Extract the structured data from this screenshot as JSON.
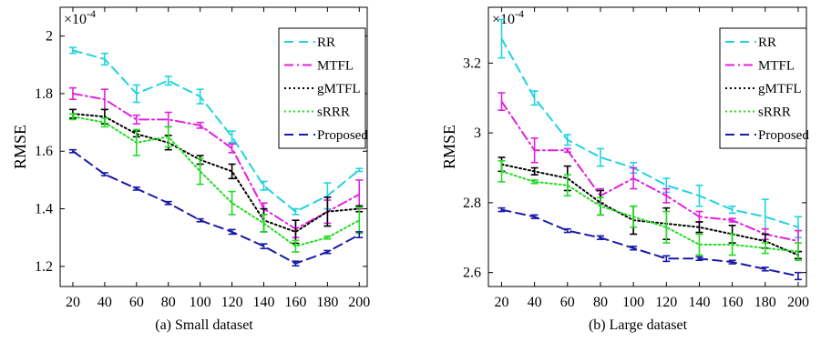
{
  "chart_data": [
    {
      "type": "line",
      "caption": "(a) Small dataset",
      "ylabel": "RMSE",
      "exponent_label": "×10",
      "exponent_power": "-4",
      "x": [
        20,
        40,
        60,
        80,
        100,
        120,
        140,
        160,
        180,
        200
      ],
      "xlim": [
        12,
        205
      ],
      "ylim": [
        1.13,
        2.1
      ],
      "x_ticks": [
        20,
        40,
        60,
        80,
        100,
        120,
        140,
        160,
        180,
        200
      ],
      "y_ticks": [
        1.2,
        1.4,
        1.6,
        1.8,
        2.0
      ],
      "y_tick_labels": [
        "1.2",
        "1.4",
        "1.6",
        "1.8",
        "2"
      ],
      "legend_position": "top-right",
      "series": [
        {
          "name": "RR",
          "color": "#22d3dd",
          "dash": "dash",
          "values": [
            1.95,
            1.92,
            1.8,
            1.845,
            1.79,
            1.65,
            1.48,
            1.39,
            1.445,
            1.535
          ],
          "errors": [
            0.01,
            0.02,
            0.03,
            0.015,
            0.025,
            0.02,
            0.015,
            0.01,
            0.045,
            0.005
          ]
        },
        {
          "name": "MTFL",
          "color": "#e020e0",
          "dash": "dashdot",
          "values": [
            1.8,
            1.78,
            1.71,
            1.71,
            1.69,
            1.61,
            1.4,
            1.33,
            1.39,
            1.45
          ],
          "errors": [
            0.02,
            0.035,
            0.015,
            0.025,
            0.01,
            0.015,
            0.02,
            0.03,
            0.04,
            0.05
          ]
        },
        {
          "name": "gMTFL",
          "color": "#000000",
          "dash": "dot",
          "values": [
            1.73,
            1.72,
            1.66,
            1.63,
            1.57,
            1.53,
            1.36,
            1.32,
            1.39,
            1.4
          ],
          "errors": [
            0.015,
            0.025,
            0.01,
            0.025,
            0.015,
            0.025,
            0.04,
            0.04,
            0.05,
            0.01
          ]
        },
        {
          "name": "sRRR",
          "color": "#22dd22",
          "dash": "dot",
          "values": [
            1.72,
            1.7,
            1.63,
            1.65,
            1.53,
            1.42,
            1.35,
            1.27,
            1.3,
            1.36
          ],
          "errors": [
            0.01,
            0.015,
            0.045,
            0.035,
            0.045,
            0.04,
            0.03,
            0.02,
            0.005,
            0.045
          ]
        },
        {
          "name": "Proposed",
          "color": "#1a1aa8",
          "dash": "dash",
          "values": [
            1.6,
            1.52,
            1.47,
            1.42,
            1.36,
            1.32,
            1.27,
            1.21,
            1.25,
            1.31
          ],
          "errors": [
            0.005,
            0.005,
            0.005,
            0.005,
            0.005,
            0.008,
            0.008,
            0.008,
            0.005,
            0.01
          ]
        }
      ]
    },
    {
      "type": "line",
      "caption": "(b) Large dataset",
      "ylabel": "RMSE",
      "exponent_label": "×10",
      "exponent_power": "-4",
      "x": [
        20,
        40,
        60,
        80,
        100,
        120,
        140,
        160,
        180,
        200
      ],
      "xlim": [
        12,
        205
      ],
      "ylim": [
        2.56,
        3.36
      ],
      "x_ticks": [
        20,
        40,
        60,
        80,
        100,
        120,
        140,
        160,
        180,
        200
      ],
      "y_ticks": [
        2.6,
        2.8,
        3.0,
        3.2
      ],
      "y_tick_labels": [
        "2.6",
        "2.8",
        "3",
        "3.2"
      ],
      "legend_position": "top-right",
      "series": [
        {
          "name": "RR",
          "color": "#22d3dd",
          "dash": "dash",
          "values": [
            3.27,
            3.1,
            2.98,
            2.93,
            2.9,
            2.85,
            2.82,
            2.78,
            2.76,
            2.73
          ],
          "errors": [
            0.055,
            0.02,
            0.015,
            0.025,
            0.015,
            0.02,
            0.03,
            0.01,
            0.05,
            0.03
          ]
        },
        {
          "name": "MTFL",
          "color": "#e020e0",
          "dash": "dashdot",
          "values": [
            3.09,
            2.95,
            2.95,
            2.82,
            2.87,
            2.82,
            2.76,
            2.75,
            2.71,
            2.69
          ],
          "errors": [
            0.025,
            0.035,
            0.005,
            0.02,
            0.03,
            0.02,
            0.015,
            0.005,
            0.015,
            0.03
          ]
        },
        {
          "name": "gMTFL",
          "color": "#000000",
          "dash": "dot",
          "values": [
            2.91,
            2.89,
            2.87,
            2.8,
            2.75,
            2.74,
            2.73,
            2.71,
            2.69,
            2.65
          ],
          "errors": [
            0.02,
            0.01,
            0.035,
            0.035,
            0.04,
            0.045,
            0.015,
            0.025,
            0.02,
            0.01
          ]
        },
        {
          "name": "sRRR",
          "color": "#22dd22",
          "dash": "dot",
          "values": [
            2.89,
            2.86,
            2.85,
            2.79,
            2.76,
            2.73,
            2.68,
            2.68,
            2.67,
            2.66
          ],
          "errors": [
            0.03,
            0.005,
            0.03,
            0.025,
            0.03,
            0.045,
            0.03,
            0.03,
            0.015,
            0.025
          ]
        },
        {
          "name": "Proposed",
          "color": "#1a1aa8",
          "dash": "dash",
          "values": [
            2.78,
            2.76,
            2.72,
            2.7,
            2.67,
            2.64,
            2.64,
            2.63,
            2.61,
            2.59
          ],
          "errors": [
            0.005,
            0.005,
            0.005,
            0.005,
            0.005,
            0.008,
            0.005,
            0.005,
            0.005,
            0.01
          ]
        }
      ]
    }
  ]
}
